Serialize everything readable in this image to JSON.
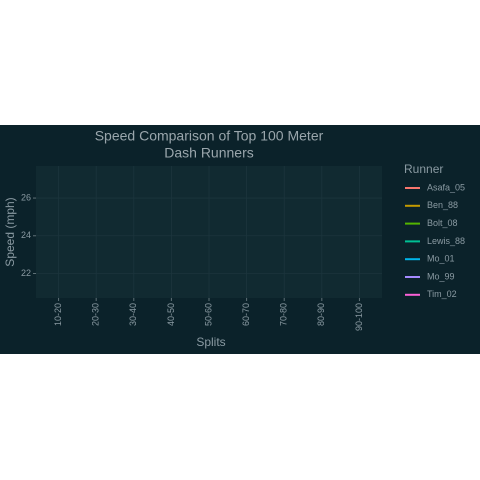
{
  "chart_data": {
    "type": "line",
    "title": [
      "Speed Comparison of Top 100 Meter",
      "Dash Runners"
    ],
    "x_label": "Splits",
    "y_label": "Speed (mph)",
    "legend_title": "Runner",
    "categories": [
      "10-20",
      "20-30",
      "30-40",
      "40-50",
      "50-60",
      "60-70",
      "70-80",
      "80-90",
      "90-100"
    ],
    "series": [
      {
        "name": "Asafa_05",
        "color": "#F8766D",
        "values": [
          null,
          null,
          null,
          null,
          null,
          null,
          null,
          null,
          null
        ]
      },
      {
        "name": "Ben_88",
        "color": "#C49A00",
        "values": [
          null,
          null,
          null,
          null,
          null,
          null,
          null,
          null,
          null
        ]
      },
      {
        "name": "Bolt_08",
        "color": "#53B400",
        "values": [
          null,
          null,
          null,
          null,
          null,
          null,
          null,
          null,
          null
        ]
      },
      {
        "name": "Lewis_88",
        "color": "#00C094",
        "values": [
          null,
          null,
          null,
          null,
          null,
          null,
          null,
          null,
          null
        ]
      },
      {
        "name": "Mo_01",
        "color": "#00B6EB",
        "values": [
          null,
          null,
          null,
          null,
          null,
          null,
          null,
          null,
          null
        ]
      },
      {
        "name": "Mo_99",
        "color": "#A58AFF",
        "values": [
          null,
          null,
          null,
          null,
          null,
          null,
          null,
          null,
          null
        ]
      },
      {
        "name": "Tim_02",
        "color": "#FB61D7",
        "values": [
          null,
          null,
          null,
          null,
          null,
          null,
          null,
          null,
          null
        ]
      }
    ],
    "ylim": [
      20.7,
      27.7
    ],
    "yticks": [
      22,
      24,
      26
    ],
    "grid": true,
    "legend": "right"
  }
}
